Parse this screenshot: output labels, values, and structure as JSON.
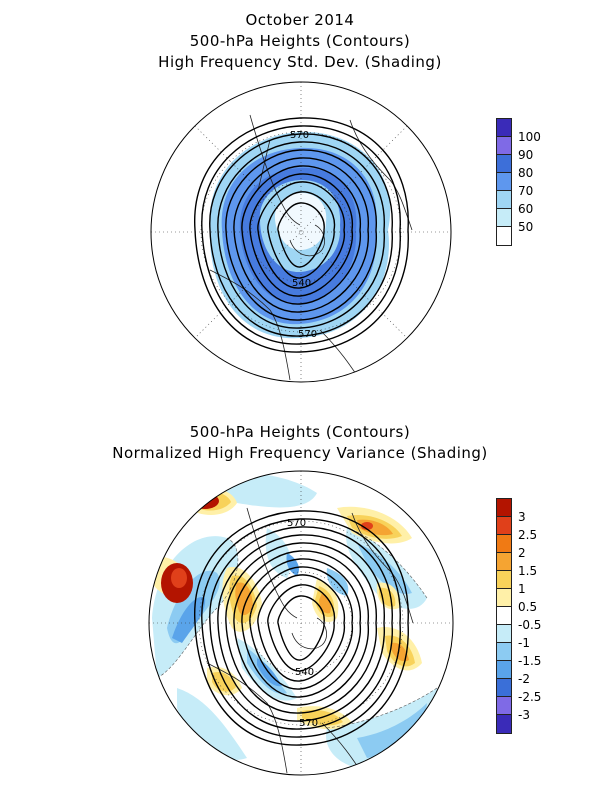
{
  "top_panel": {
    "title_lines": [
      "October 2014",
      "500-hPa Heights (Contours)",
      "High Frequency Std. Dev. (Shading)"
    ],
    "contour_labels": [
      "570",
      "540",
      "570"
    ],
    "colorbar": {
      "labels": [
        "100",
        "90",
        "80",
        "70",
        "60",
        "50"
      ],
      "colors": [
        "#3a2bb8",
        "#7f6ae6",
        "#3d6fd9",
        "#5e97ee",
        "#9fd6f4",
        "#ffffff"
      ]
    }
  },
  "bottom_panel": {
    "title_lines": [
      "500-hPa Heights (Contours)",
      "Normalized High Frequency Variance (Shading)"
    ],
    "contour_labels": [
      "570",
      "540",
      "570"
    ],
    "colorbar": {
      "labels": [
        "3",
        "2.5",
        "2",
        "1.5",
        "1",
        "0.5",
        "-0.5",
        "-1",
        "-1.5",
        "-2",
        "-2.5",
        "-3"
      ],
      "colors": [
        "#b31400",
        "#e0401a",
        "#f07a14",
        "#f5a432",
        "#f8d25a",
        "#fff0a8",
        "#ffffff",
        "#c6ecf8",
        "#8ccbf2",
        "#5aa4ea",
        "#3a6fd8",
        "#7f6ae6",
        "#3a2bb8"
      ]
    }
  }
}
